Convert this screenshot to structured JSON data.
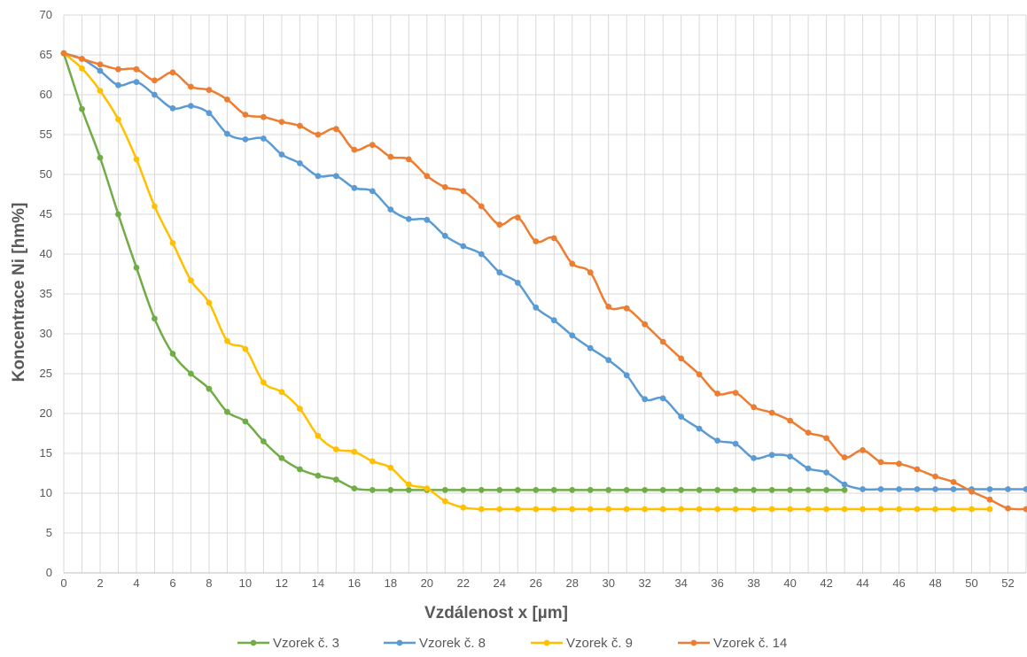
{
  "chart_data": {
    "type": "line",
    "title": "",
    "xlabel": "Vzdálenost x [µm]",
    "ylabel": "Koncentrace Ni [hm%]",
    "xlim": [
      0,
      53
    ],
    "ylim": [
      0,
      70
    ],
    "x_ticks": [
      0,
      2,
      4,
      6,
      8,
      10,
      12,
      14,
      16,
      18,
      20,
      22,
      24,
      26,
      28,
      30,
      32,
      34,
      36,
      38,
      40,
      42,
      44,
      46,
      48,
      50,
      52
    ],
    "y_ticks": [
      0,
      5,
      10,
      15,
      20,
      25,
      30,
      35,
      40,
      45,
      50,
      55,
      60,
      65,
      70
    ],
    "grid": true,
    "legend_position": "bottom",
    "series": [
      {
        "name": "Vzorek č. 3",
        "color": "#70AD47",
        "x": [
          0,
          1,
          2,
          3,
          4,
          5,
          6,
          7,
          8,
          9,
          10,
          11,
          12,
          13,
          14,
          15,
          16,
          17,
          18,
          19,
          20,
          21,
          22,
          23,
          24,
          25,
          26,
          27,
          28,
          29,
          30,
          31,
          32,
          33,
          34,
          35,
          36,
          37,
          38,
          39,
          40,
          41,
          42,
          43
        ],
        "y": [
          65.2,
          58.2,
          52.1,
          45.0,
          38.3,
          31.9,
          27.5,
          25.0,
          23.1,
          20.2,
          19.0,
          16.5,
          14.4,
          13.0,
          12.2,
          11.7,
          10.6,
          10.4,
          10.4,
          10.4,
          10.4,
          10.4,
          10.4,
          10.4,
          10.4,
          10.4,
          10.4,
          10.4,
          10.4,
          10.4,
          10.4,
          10.4,
          10.4,
          10.4,
          10.4,
          10.4,
          10.4,
          10.4,
          10.4,
          10.4,
          10.4,
          10.4,
          10.4,
          10.4
        ]
      },
      {
        "name": "Vzorek č. 8",
        "color": "#5B9BD5",
        "x": [
          0,
          1,
          2,
          3,
          4,
          5,
          6,
          7,
          8,
          9,
          10,
          11,
          12,
          13,
          14,
          15,
          16,
          17,
          18,
          19,
          20,
          21,
          22,
          23,
          24,
          25,
          26,
          27,
          28,
          29,
          30,
          31,
          32,
          33,
          34,
          35,
          36,
          37,
          38,
          39,
          40,
          41,
          42,
          43,
          44,
          45,
          46,
          47,
          48,
          49,
          50,
          51,
          52,
          53
        ],
        "y": [
          65.2,
          64.5,
          63.0,
          61.2,
          61.6,
          60.0,
          58.3,
          58.6,
          57.7,
          55.1,
          54.4,
          54.5,
          52.5,
          51.4,
          49.8,
          49.8,
          48.3,
          47.9,
          45.6,
          44.4,
          44.3,
          42.3,
          41.0,
          40.0,
          37.7,
          36.4,
          33.3,
          31.7,
          29.8,
          28.2,
          26.7,
          24.8,
          21.8,
          21.9,
          19.6,
          18.1,
          16.6,
          16.2,
          14.4,
          14.8,
          14.6,
          13.1,
          12.6,
          11.1,
          10.5,
          10.5,
          10.5,
          10.5,
          10.5,
          10.5,
          10.5,
          10.5,
          10.5,
          10.5
        ]
      },
      {
        "name": "Vzorek č. 9",
        "color": "#FFC000",
        "x": [
          0,
          1,
          2,
          3,
          4,
          5,
          6,
          7,
          8,
          9,
          10,
          11,
          12,
          13,
          14,
          15,
          16,
          17,
          18,
          19,
          20,
          21,
          22,
          23,
          24,
          25,
          26,
          27,
          28,
          29,
          30,
          31,
          32,
          33,
          34,
          35,
          36,
          37,
          38,
          39,
          40,
          41,
          42,
          43,
          44,
          45,
          46,
          47,
          48,
          49,
          50,
          51
        ],
        "y": [
          65.2,
          63.3,
          60.5,
          56.9,
          51.9,
          46.0,
          41.4,
          36.7,
          33.9,
          29.1,
          28.1,
          23.9,
          22.7,
          20.6,
          17.2,
          15.5,
          15.2,
          14.0,
          13.2,
          11.1,
          10.6,
          9.0,
          8.2,
          8.0,
          8.0,
          8.0,
          8.0,
          8.0,
          8.0,
          8.0,
          8.0,
          8.0,
          8.0,
          8.0,
          8.0,
          8.0,
          8.0,
          8.0,
          8.0,
          8.0,
          8.0,
          8.0,
          8.0,
          8.0,
          8.0,
          8.0,
          8.0,
          8.0,
          8.0,
          8.0,
          8.0,
          8.0
        ]
      },
      {
        "name": "Vzorek č. 14",
        "color": "#ED7D31",
        "x": [
          0,
          1,
          2,
          3,
          4,
          5,
          6,
          7,
          8,
          9,
          10,
          11,
          12,
          13,
          14,
          15,
          16,
          17,
          18,
          19,
          20,
          21,
          22,
          23,
          24,
          25,
          26,
          27,
          28,
          29,
          30,
          31,
          32,
          33,
          34,
          35,
          36,
          37,
          38,
          39,
          40,
          41,
          42,
          43,
          44,
          45,
          46,
          47,
          48,
          49,
          50,
          51,
          52,
          53
        ],
        "y": [
          65.2,
          64.5,
          63.8,
          63.2,
          63.2,
          61.8,
          62.8,
          61.0,
          60.6,
          59.4,
          57.5,
          57.2,
          56.6,
          56.1,
          55.0,
          55.7,
          53.1,
          53.7,
          52.2,
          51.9,
          49.8,
          48.4,
          47.9,
          46.0,
          43.7,
          44.6,
          41.6,
          42.0,
          38.8,
          37.7,
          33.4,
          33.2,
          31.2,
          29.0,
          26.9,
          24.9,
          22.5,
          22.6,
          20.8,
          20.1,
          19.1,
          17.6,
          16.9,
          14.5,
          15.4,
          13.9,
          13.7,
          13.0,
          12.1,
          11.4,
          10.2,
          9.2,
          8.1,
          8.0
        ]
      }
    ]
  }
}
